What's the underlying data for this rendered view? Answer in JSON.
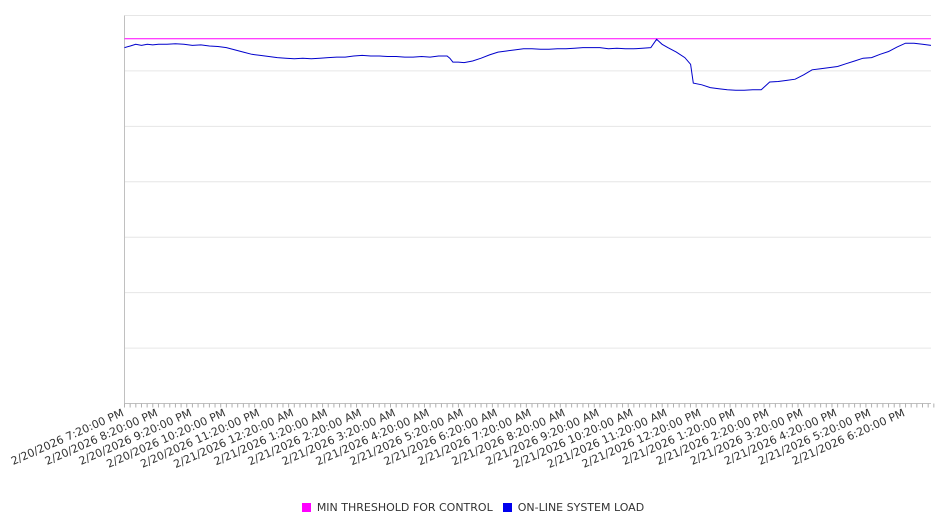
{
  "chart_data": {
    "type": "line",
    "x_labels": [
      "2/20/2026 7:20:00 PM",
      "2/20/2026 8:20:00 PM",
      "2/20/2026 9:20:00 PM",
      "2/20/2026 10:20:00 PM",
      "2/20/2026 11:20:00 PM",
      "2/21/2026 12:20:00 AM",
      "2/21/2026 1:20:00 AM",
      "2/21/2026 2:20:00 AM",
      "2/21/2026 3:20:00 AM",
      "2/21/2026 4:20:00 AM",
      "2/21/2026 5:20:00 AM",
      "2/21/2026 6:20:00 AM",
      "2/21/2026 7:20:00 AM",
      "2/21/2026 8:20:00 AM",
      "2/21/2026 9:20:00 AM",
      "2/21/2026 10:20:00 AM",
      "2/21/2026 11:20:00 AM",
      "2/21/2026 12:20:00 PM",
      "2/21/2026 1:20:00 PM",
      "2/21/2026 2:20:00 PM",
      "2/21/2026 3:20:00 PM",
      "2/21/2026 4:20:00 PM",
      "2/21/2026 5:20:00 PM",
      "2/21/2026 6:20:00 PM"
    ],
    "x_range_hours": [
      0,
      23.75
    ],
    "ylim": [
      0,
      7
    ],
    "y_gridlines": [
      0,
      1,
      2,
      3,
      4,
      5,
      6,
      7
    ],
    "y_tick_labels_visible": false,
    "grid": true,
    "legend_position": "bottom",
    "series": [
      {
        "name": "MIN THRESHOLD FOR CONTROL",
        "color": "#ff00ff",
        "constant": true,
        "points": [
          [
            0,
            6.58
          ],
          [
            23.75,
            6.58
          ]
        ]
      },
      {
        "name": "ON-LINE SYSTEM LOAD",
        "color": "#0000cc",
        "points": [
          [
            0.0,
            6.42
          ],
          [
            0.17,
            6.45
          ],
          [
            0.33,
            6.48
          ],
          [
            0.5,
            6.46
          ],
          [
            0.67,
            6.48
          ],
          [
            0.83,
            6.47
          ],
          [
            1.0,
            6.48
          ],
          [
            1.25,
            6.48
          ],
          [
            1.5,
            6.49
          ],
          [
            1.75,
            6.48
          ],
          [
            2.0,
            6.46
          ],
          [
            2.25,
            6.47
          ],
          [
            2.5,
            6.45
          ],
          [
            2.75,
            6.44
          ],
          [
            3.0,
            6.42
          ],
          [
            3.25,
            6.38
          ],
          [
            3.5,
            6.34
          ],
          [
            3.75,
            6.3
          ],
          [
            4.0,
            6.28
          ],
          [
            4.25,
            6.26
          ],
          [
            4.5,
            6.24
          ],
          [
            4.75,
            6.23
          ],
          [
            5.0,
            6.22
          ],
          [
            5.25,
            6.23
          ],
          [
            5.5,
            6.22
          ],
          [
            5.75,
            6.23
          ],
          [
            6.0,
            6.24
          ],
          [
            6.25,
            6.25
          ],
          [
            6.5,
            6.25
          ],
          [
            6.75,
            6.27
          ],
          [
            7.0,
            6.28
          ],
          [
            7.25,
            6.27
          ],
          [
            7.5,
            6.27
          ],
          [
            7.75,
            6.26
          ],
          [
            8.0,
            6.26
          ],
          [
            8.25,
            6.25
          ],
          [
            8.5,
            6.25
          ],
          [
            8.75,
            6.26
          ],
          [
            9.0,
            6.25
          ],
          [
            9.25,
            6.27
          ],
          [
            9.5,
            6.27
          ],
          [
            9.58,
            6.23
          ],
          [
            9.67,
            6.16
          ],
          [
            9.83,
            6.16
          ],
          [
            10.0,
            6.15
          ],
          [
            10.25,
            6.18
          ],
          [
            10.5,
            6.23
          ],
          [
            10.75,
            6.29
          ],
          [
            11.0,
            6.34
          ],
          [
            11.25,
            6.36
          ],
          [
            11.5,
            6.38
          ],
          [
            11.75,
            6.4
          ],
          [
            12.0,
            6.4
          ],
          [
            12.25,
            6.39
          ],
          [
            12.5,
            6.39
          ],
          [
            12.75,
            6.4
          ],
          [
            13.0,
            6.4
          ],
          [
            13.25,
            6.41
          ],
          [
            13.5,
            6.42
          ],
          [
            13.75,
            6.42
          ],
          [
            14.0,
            6.42
          ],
          [
            14.25,
            6.4
          ],
          [
            14.5,
            6.41
          ],
          [
            14.75,
            6.4
          ],
          [
            15.0,
            6.4
          ],
          [
            15.25,
            6.41
          ],
          [
            15.5,
            6.42
          ],
          [
            15.67,
            6.57
          ],
          [
            15.83,
            6.48
          ],
          [
            16.0,
            6.42
          ],
          [
            16.25,
            6.34
          ],
          [
            16.5,
            6.24
          ],
          [
            16.67,
            6.12
          ],
          [
            16.75,
            5.78
          ],
          [
            17.0,
            5.75
          ],
          [
            17.25,
            5.7
          ],
          [
            17.5,
            5.68
          ],
          [
            17.75,
            5.66
          ],
          [
            18.0,
            5.65
          ],
          [
            18.25,
            5.65
          ],
          [
            18.5,
            5.66
          ],
          [
            18.75,
            5.66
          ],
          [
            19.0,
            5.8
          ],
          [
            19.25,
            5.81
          ],
          [
            19.5,
            5.83
          ],
          [
            19.75,
            5.85
          ],
          [
            20.0,
            5.93
          ],
          [
            20.25,
            6.02
          ],
          [
            20.5,
            6.04
          ],
          [
            20.75,
            6.06
          ],
          [
            21.0,
            6.08
          ],
          [
            21.25,
            6.13
          ],
          [
            21.5,
            6.18
          ],
          [
            21.75,
            6.23
          ],
          [
            22.0,
            6.24
          ],
          [
            22.25,
            6.3
          ],
          [
            22.5,
            6.35
          ],
          [
            22.75,
            6.43
          ],
          [
            23.0,
            6.5
          ],
          [
            23.25,
            6.5
          ],
          [
            23.5,
            6.48
          ],
          [
            23.75,
            6.46
          ]
        ]
      }
    ]
  }
}
